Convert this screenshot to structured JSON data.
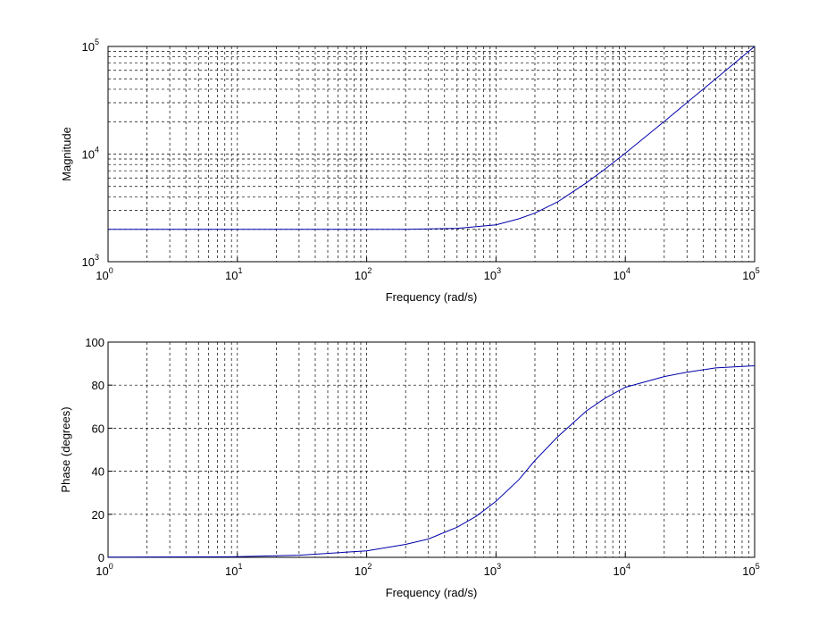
{
  "chart_data": [
    {
      "type": "line",
      "title": "",
      "xlabel": "Frequency (rad/s)",
      "ylabel": "Magnitude",
      "xscale": "log",
      "yscale": "log",
      "xlim": [
        1,
        100000
      ],
      "ylim": [
        1000,
        100000
      ],
      "grid": true,
      "x_ticks": [
        {
          "base": "10",
          "exp": "0"
        },
        {
          "base": "10",
          "exp": "1"
        },
        {
          "base": "10",
          "exp": "2"
        },
        {
          "base": "10",
          "exp": "3"
        },
        {
          "base": "10",
          "exp": "4"
        },
        {
          "base": "10",
          "exp": "5"
        }
      ],
      "y_ticks": [
        {
          "base": "10",
          "exp": "3"
        },
        {
          "base": "10",
          "exp": "4"
        },
        {
          "base": "10",
          "exp": "5"
        }
      ],
      "series": [
        {
          "color": "#0000aa",
          "x": [
            1,
            10,
            100,
            200,
            500,
            1000,
            1500,
            2000,
            3000,
            5000,
            7000,
            10000,
            20000,
            30000,
            50000,
            100000
          ],
          "y": [
            2000,
            2000,
            2000,
            2000,
            2040,
            2200,
            2500,
            2830,
            3600,
            5400,
            7300,
            10200,
            20100,
            30100,
            50000,
            100000
          ]
        }
      ]
    },
    {
      "type": "line",
      "title": "",
      "xlabel": "Frequency (rad/s)",
      "ylabel": "Phase (degrees)",
      "xscale": "log",
      "yscale": "linear",
      "xlim": [
        1,
        100000
      ],
      "ylim": [
        0,
        100
      ],
      "grid": true,
      "x_ticks": [
        {
          "base": "10",
          "exp": "0"
        },
        {
          "base": "10",
          "exp": "1"
        },
        {
          "base": "10",
          "exp": "2"
        },
        {
          "base": "10",
          "exp": "3"
        },
        {
          "base": "10",
          "exp": "4"
        },
        {
          "base": "10",
          "exp": "5"
        }
      ],
      "y_ticks": [
        "0",
        "20",
        "40",
        "60",
        "80",
        "100"
      ],
      "series": [
        {
          "color": "#0000aa",
          "x": [
            1,
            10,
            30,
            100,
            200,
            300,
            500,
            700,
            1000,
            1500,
            2000,
            3000,
            5000,
            7000,
            10000,
            20000,
            30000,
            50000,
            100000
          ],
          "y": [
            0.1,
            0.3,
            1,
            3,
            6,
            8.5,
            14,
            19,
            26,
            36,
            45,
            56,
            68,
            74,
            79,
            84,
            86,
            88,
            89
          ]
        }
      ]
    }
  ]
}
